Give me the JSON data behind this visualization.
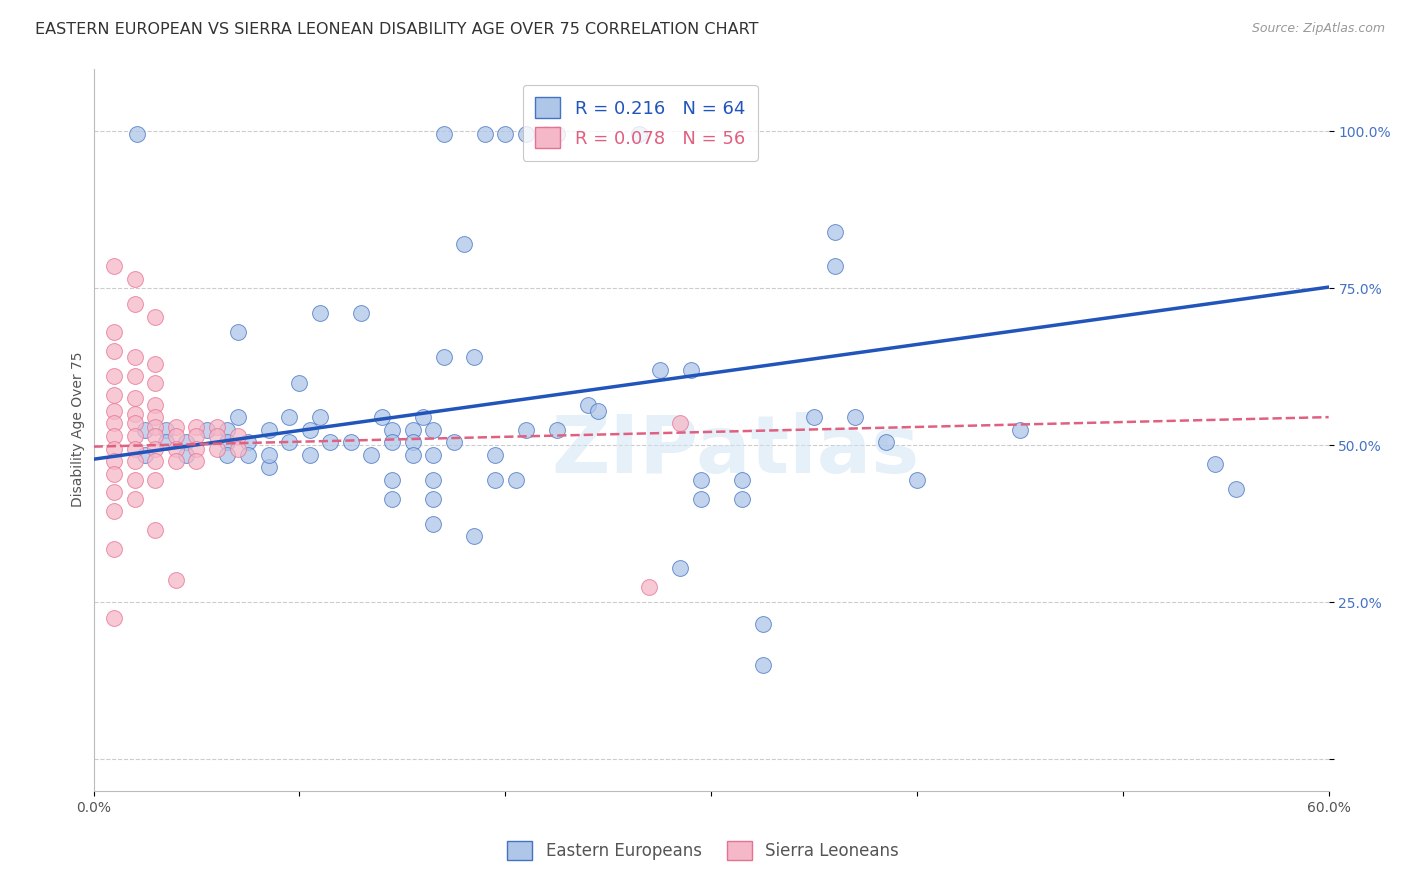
{
  "title": "EASTERN EUROPEAN VS SIERRA LEONEAN DISABILITY AGE OVER 75 CORRELATION CHART",
  "source": "Source: ZipAtlas.com",
  "ylabel": "Disability Age Over 75",
  "xlim": [
    0.0,
    0.6
  ],
  "ylim": [
    -0.05,
    1.1
  ],
  "ytick_positions": [
    0.0,
    0.25,
    0.5,
    0.75,
    1.0
  ],
  "yticklabels": [
    "",
    "25.0%",
    "50.0%",
    "75.0%",
    "100.0%"
  ],
  "blue_R": 0.216,
  "blue_N": 64,
  "pink_R": 0.078,
  "pink_N": 56,
  "blue_color": "#aec6e8",
  "pink_color": "#f5b8c8",
  "blue_edge_color": "#4472c4",
  "pink_edge_color": "#e87090",
  "blue_line_color": "#2255bb",
  "pink_line_color": "#e06080",
  "blue_scatter": [
    [
      0.021,
      0.995
    ],
    [
      0.17,
      0.995
    ],
    [
      0.19,
      0.995
    ],
    [
      0.2,
      0.995
    ],
    [
      0.21,
      0.995
    ],
    [
      0.22,
      0.995
    ],
    [
      0.225,
      0.995
    ],
    [
      0.265,
      0.995
    ],
    [
      0.18,
      0.82
    ],
    [
      0.36,
      0.84
    ],
    [
      0.36,
      0.785
    ],
    [
      0.11,
      0.71
    ],
    [
      0.13,
      0.71
    ],
    [
      0.07,
      0.68
    ],
    [
      0.17,
      0.64
    ],
    [
      0.185,
      0.64
    ],
    [
      0.275,
      0.62
    ],
    [
      0.29,
      0.62
    ],
    [
      0.1,
      0.6
    ],
    [
      0.24,
      0.565
    ],
    [
      0.245,
      0.555
    ],
    [
      0.07,
      0.545
    ],
    [
      0.095,
      0.545
    ],
    [
      0.11,
      0.545
    ],
    [
      0.14,
      0.545
    ],
    [
      0.16,
      0.545
    ],
    [
      0.35,
      0.545
    ],
    [
      0.37,
      0.545
    ],
    [
      0.025,
      0.525
    ],
    [
      0.035,
      0.525
    ],
    [
      0.055,
      0.525
    ],
    [
      0.065,
      0.525
    ],
    [
      0.085,
      0.525
    ],
    [
      0.105,
      0.525
    ],
    [
      0.145,
      0.525
    ],
    [
      0.155,
      0.525
    ],
    [
      0.165,
      0.525
    ],
    [
      0.21,
      0.525
    ],
    [
      0.225,
      0.525
    ],
    [
      0.45,
      0.525
    ],
    [
      0.085,
      0.465
    ],
    [
      0.035,
      0.505
    ],
    [
      0.045,
      0.505
    ],
    [
      0.065,
      0.505
    ],
    [
      0.075,
      0.505
    ],
    [
      0.095,
      0.505
    ],
    [
      0.115,
      0.505
    ],
    [
      0.125,
      0.505
    ],
    [
      0.145,
      0.505
    ],
    [
      0.155,
      0.505
    ],
    [
      0.175,
      0.505
    ],
    [
      0.025,
      0.485
    ],
    [
      0.045,
      0.485
    ],
    [
      0.065,
      0.485
    ],
    [
      0.075,
      0.485
    ],
    [
      0.085,
      0.485
    ],
    [
      0.105,
      0.485
    ],
    [
      0.135,
      0.485
    ],
    [
      0.155,
      0.485
    ],
    [
      0.165,
      0.485
    ],
    [
      0.195,
      0.485
    ],
    [
      0.145,
      0.445
    ],
    [
      0.165,
      0.445
    ],
    [
      0.195,
      0.445
    ],
    [
      0.205,
      0.445
    ],
    [
      0.295,
      0.445
    ],
    [
      0.315,
      0.445
    ],
    [
      0.4,
      0.445
    ],
    [
      0.145,
      0.415
    ],
    [
      0.165,
      0.415
    ],
    [
      0.295,
      0.415
    ],
    [
      0.315,
      0.415
    ],
    [
      0.165,
      0.375
    ],
    [
      0.185,
      0.355
    ],
    [
      0.285,
      0.305
    ],
    [
      0.325,
      0.215
    ],
    [
      0.325,
      0.15
    ],
    [
      0.545,
      0.47
    ],
    [
      0.555,
      0.43
    ],
    [
      0.385,
      0.505
    ]
  ],
  "pink_scatter": [
    [
      0.01,
      0.785
    ],
    [
      0.02,
      0.765
    ],
    [
      0.02,
      0.725
    ],
    [
      0.03,
      0.705
    ],
    [
      0.01,
      0.68
    ],
    [
      0.01,
      0.65
    ],
    [
      0.02,
      0.64
    ],
    [
      0.03,
      0.63
    ],
    [
      0.01,
      0.61
    ],
    [
      0.02,
      0.61
    ],
    [
      0.03,
      0.6
    ],
    [
      0.01,
      0.58
    ],
    [
      0.02,
      0.575
    ],
    [
      0.03,
      0.565
    ],
    [
      0.01,
      0.555
    ],
    [
      0.02,
      0.55
    ],
    [
      0.03,
      0.545
    ],
    [
      0.01,
      0.535
    ],
    [
      0.02,
      0.535
    ],
    [
      0.03,
      0.53
    ],
    [
      0.04,
      0.53
    ],
    [
      0.05,
      0.53
    ],
    [
      0.06,
      0.53
    ],
    [
      0.01,
      0.515
    ],
    [
      0.02,
      0.515
    ],
    [
      0.03,
      0.515
    ],
    [
      0.04,
      0.515
    ],
    [
      0.05,
      0.515
    ],
    [
      0.06,
      0.515
    ],
    [
      0.07,
      0.515
    ],
    [
      0.01,
      0.495
    ],
    [
      0.02,
      0.495
    ],
    [
      0.03,
      0.495
    ],
    [
      0.04,
      0.495
    ],
    [
      0.05,
      0.495
    ],
    [
      0.06,
      0.495
    ],
    [
      0.07,
      0.495
    ],
    [
      0.01,
      0.475
    ],
    [
      0.02,
      0.475
    ],
    [
      0.03,
      0.475
    ],
    [
      0.04,
      0.475
    ],
    [
      0.05,
      0.475
    ],
    [
      0.01,
      0.455
    ],
    [
      0.02,
      0.445
    ],
    [
      0.03,
      0.445
    ],
    [
      0.01,
      0.425
    ],
    [
      0.02,
      0.415
    ],
    [
      0.01,
      0.395
    ],
    [
      0.03,
      0.365
    ],
    [
      0.01,
      0.335
    ],
    [
      0.04,
      0.285
    ],
    [
      0.01,
      0.225
    ],
    [
      0.27,
      0.275
    ],
    [
      0.285,
      0.535
    ]
  ],
  "blue_trendline": [
    0.0,
    0.6,
    0.478,
    0.752
  ],
  "pink_trendline": [
    0.0,
    0.6,
    0.498,
    0.545
  ],
  "watermark": "ZIPatlas",
  "title_color": "#333333",
  "title_fontsize": 11.5,
  "source_fontsize": 9,
  "axis_label_fontsize": 10,
  "tick_fontsize": 10,
  "ytick_color": "#4472c4",
  "legend_fontsize": 13
}
